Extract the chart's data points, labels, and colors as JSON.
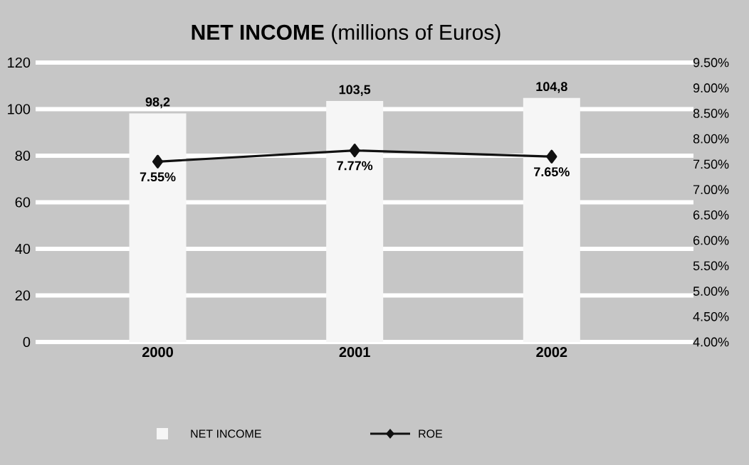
{
  "chart_data": {
    "type": "bar",
    "title": "**NET INCOME** (millions of Euros)",
    "categories": [
      "2000",
      "2001",
      "2002"
    ],
    "series": [
      {
        "name": "NET INCOME",
        "color": "#f6f6f6",
        "values": [
          98.2,
          103.5,
          104.8
        ],
        "value_labels": [
          "98,2",
          "103,5",
          "104,8"
        ]
      },
      {
        "name": "ROE",
        "type": "line",
        "axis": "y2",
        "color": "#111111",
        "marker": "diamond",
        "values": [
          7.55,
          7.77,
          7.65
        ],
        "value_labels": [
          "7.55%",
          "7.77%",
          "7.65%"
        ]
      }
    ],
    "ylim": [
      0,
      120
    ],
    "yticks": [
      0,
      20,
      40,
      60,
      80,
      100,
      120
    ],
    "y2lim": [
      4.0,
      9.5
    ],
    "y2ticks": [
      {
        "value": 4.0,
        "label": "4.00%"
      },
      {
        "value": 4.5,
        "label": "4.50%"
      },
      {
        "value": 5.0,
        "label": "5.00%"
      },
      {
        "value": 5.5,
        "label": "5.50%"
      },
      {
        "value": 6.0,
        "label": "6.00%"
      },
      {
        "value": 6.5,
        "label": "6.50%"
      },
      {
        "value": 7.0,
        "label": "7.00%"
      },
      {
        "value": 7.5,
        "label": "7.50%"
      },
      {
        "value": 8.0,
        "label": "8.00%"
      },
      {
        "value": 8.5,
        "label": "8.50%"
      },
      {
        "value": 9.0,
        "label": "9.00%"
      },
      {
        "value": 9.5,
        "label": "9.50%"
      }
    ],
    "grid": "y",
    "legend": "bottom"
  }
}
